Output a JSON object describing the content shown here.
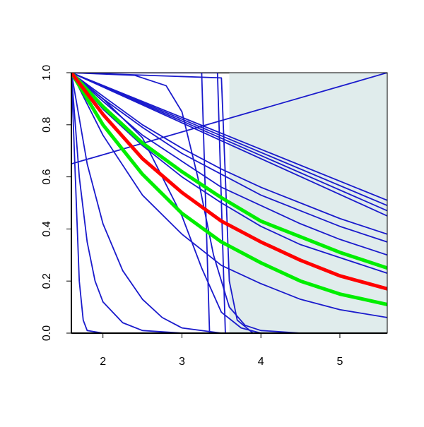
{
  "chart_data": {
    "type": "line",
    "xlim": [
      1.6,
      5.6
    ],
    "ylim": [
      0,
      1
    ],
    "xticks": [
      2,
      3,
      4,
      5
    ],
    "yticks": [
      {
        "value": 0,
        "label": "0.0"
      },
      {
        "value": 0.2,
        "label": "0.2"
      },
      {
        "value": 0.4,
        "label": "0.4"
      },
      {
        "value": 0.6,
        "label": "0.6"
      },
      {
        "value": 0.8,
        "label": "0.8"
      },
      {
        "value": 1,
        "label": "1.0"
      }
    ],
    "shaded_region": {
      "x": [
        3.6,
        5.6
      ],
      "color": "#e0ecec"
    },
    "series": [
      {
        "color": "#1a1acc",
        "width": 1.8,
        "x": [
          1.6,
          5.6
        ],
        "values": [
          1,
          0.51
        ]
      },
      {
        "color": "#1a1acc",
        "width": 1.8,
        "x": [
          1.6,
          5.6
        ],
        "values": [
          1,
          0.49
        ]
      },
      {
        "color": "#1a1acc",
        "width": 1.8,
        "x": [
          1.6,
          5.6
        ],
        "values": [
          1,
          0.47
        ]
      },
      {
        "color": "#1a1acc",
        "width": 1.8,
        "x": [
          1.6,
          5.6
        ],
        "values": [
          1,
          0.45
        ]
      },
      {
        "color": "#1a1acc",
        "width": 1.8,
        "x": [
          1.6,
          5.6
        ],
        "values": [
          0.65,
          1
        ]
      },
      {
        "color": "#1a1acc",
        "width": 1.8,
        "x": [
          1.6,
          1.6
        ],
        "values": [
          0,
          1
        ]
      },
      {
        "color": "#1a1acc",
        "width": 1.8,
        "x": [
          1.6,
          2,
          2.5,
          3,
          3.5,
          4,
          4.5,
          5,
          5.6
        ],
        "values": [
          1,
          0.91,
          0.8,
          0.71,
          0.63,
          0.56,
          0.5,
          0.44,
          0.38
        ]
      },
      {
        "color": "#1a1acc",
        "width": 1.8,
        "x": [
          1.6,
          2,
          2.5,
          3,
          3.5,
          4,
          4.5,
          5,
          5.6
        ],
        "values": [
          1,
          0.9,
          0.79,
          0.69,
          0.61,
          0.53,
          0.47,
          0.41,
          0.35
        ]
      },
      {
        "color": "#1a1acc",
        "width": 1.8,
        "x": [
          1.6,
          2,
          2.5,
          3,
          3.5,
          4,
          4.5,
          5,
          5.6
        ],
        "values": [
          1,
          0.89,
          0.76,
          0.66,
          0.56,
          0.49,
          0.42,
          0.36,
          0.3
        ]
      },
      {
        "color": "#1a1acc",
        "width": 1.8,
        "x": [
          1.6,
          2,
          2.5,
          3,
          3.5,
          4,
          4.5,
          5,
          5.6
        ],
        "values": [
          1,
          0.86,
          0.72,
          0.6,
          0.5,
          0.41,
          0.34,
          0.29,
          0.23
        ]
      },
      {
        "color": "#1a1acc",
        "width": 1.8,
        "x": [
          1.6,
          2,
          2.5,
          3,
          3.5,
          4,
          4.5,
          5,
          5.6
        ],
        "values": [
          1,
          0.76,
          0.53,
          0.38,
          0.26,
          0.19,
          0.13,
          0.09,
          0.06
        ]
      },
      {
        "color": "#1a1acc",
        "width": 1.8,
        "x": [
          1.6,
          1.65,
          1.7,
          1.75,
          1.8,
          2
        ],
        "values": [
          1,
          0.6,
          0.2,
          0.05,
          0.01,
          0
        ]
      },
      {
        "color": "#1a1acc",
        "width": 1.8,
        "x": [
          1.6,
          1.7,
          1.8,
          1.9,
          2,
          2.25,
          2.5,
          3
        ],
        "values": [
          1,
          0.6,
          0.35,
          0.2,
          0.12,
          0.04,
          0.01,
          0
        ]
      },
      {
        "color": "#1a1acc",
        "width": 1.8,
        "x": [
          1.6,
          1.8,
          2,
          2.25,
          2.5,
          2.75,
          3,
          3.5
        ],
        "values": [
          1,
          0.65,
          0.42,
          0.24,
          0.13,
          0.06,
          0.02,
          0
        ]
      },
      {
        "color": "#1a1acc",
        "width": 1.8,
        "x": [
          1.6,
          2,
          2.5,
          3,
          3.25,
          3.5,
          3.75,
          4,
          4.5
        ],
        "values": [
          1,
          0.9,
          0.75,
          0.45,
          0.25,
          0.08,
          0.02,
          0,
          0
        ]
      },
      {
        "color": "#1a1acc",
        "width": 1.8,
        "x": [
          1.6,
          2.4,
          2.8,
          3,
          3.2,
          3.4,
          3.6,
          3.8,
          4,
          4.5
        ],
        "values": [
          1,
          0.99,
          0.95,
          0.85,
          0.6,
          0.3,
          0.1,
          0.03,
          0.01,
          0
        ]
      },
      {
        "color": "#1a1acc",
        "width": 1.8,
        "x": [
          1.6,
          3.25,
          3.3,
          3.35,
          3.5
        ],
        "values": [
          1,
          1,
          0.5,
          0,
          0
        ]
      },
      {
        "color": "#1a1acc",
        "width": 1.8,
        "x": [
          1.6,
          3.45,
          3.5,
          3.55,
          3.7
        ],
        "values": [
          1,
          1,
          0.5,
          0,
          0
        ]
      },
      {
        "color": "#1a1acc",
        "width": 1.8,
        "x": [
          1.6,
          3.5,
          3.55,
          3.6,
          3.7,
          3.9
        ],
        "values": [
          1,
          0.98,
          0.6,
          0.2,
          0.05,
          0
        ]
      },
      {
        "color": "#00ee00",
        "width": 5,
        "x": [
          1.6,
          2,
          2.5,
          3,
          3.5,
          4,
          4.5,
          5,
          5.6
        ],
        "values": [
          1,
          0.87,
          0.73,
          0.62,
          0.52,
          0.43,
          0.37,
          0.31,
          0.25
        ]
      },
      {
        "color": "#00ee00",
        "width": 5,
        "x": [
          1.6,
          2,
          2.5,
          3,
          3.5,
          4,
          4.5,
          5,
          5.6
        ],
        "values": [
          1,
          0.8,
          0.61,
          0.46,
          0.35,
          0.27,
          0.2,
          0.15,
          0.11
        ]
      },
      {
        "color": "#ff0000",
        "width": 5,
        "x": [
          1.6,
          2,
          2.5,
          3,
          3.5,
          4,
          4.5,
          5,
          5.6
        ],
        "values": [
          1,
          0.84,
          0.67,
          0.54,
          0.43,
          0.35,
          0.28,
          0.22,
          0.17
        ]
      }
    ]
  }
}
